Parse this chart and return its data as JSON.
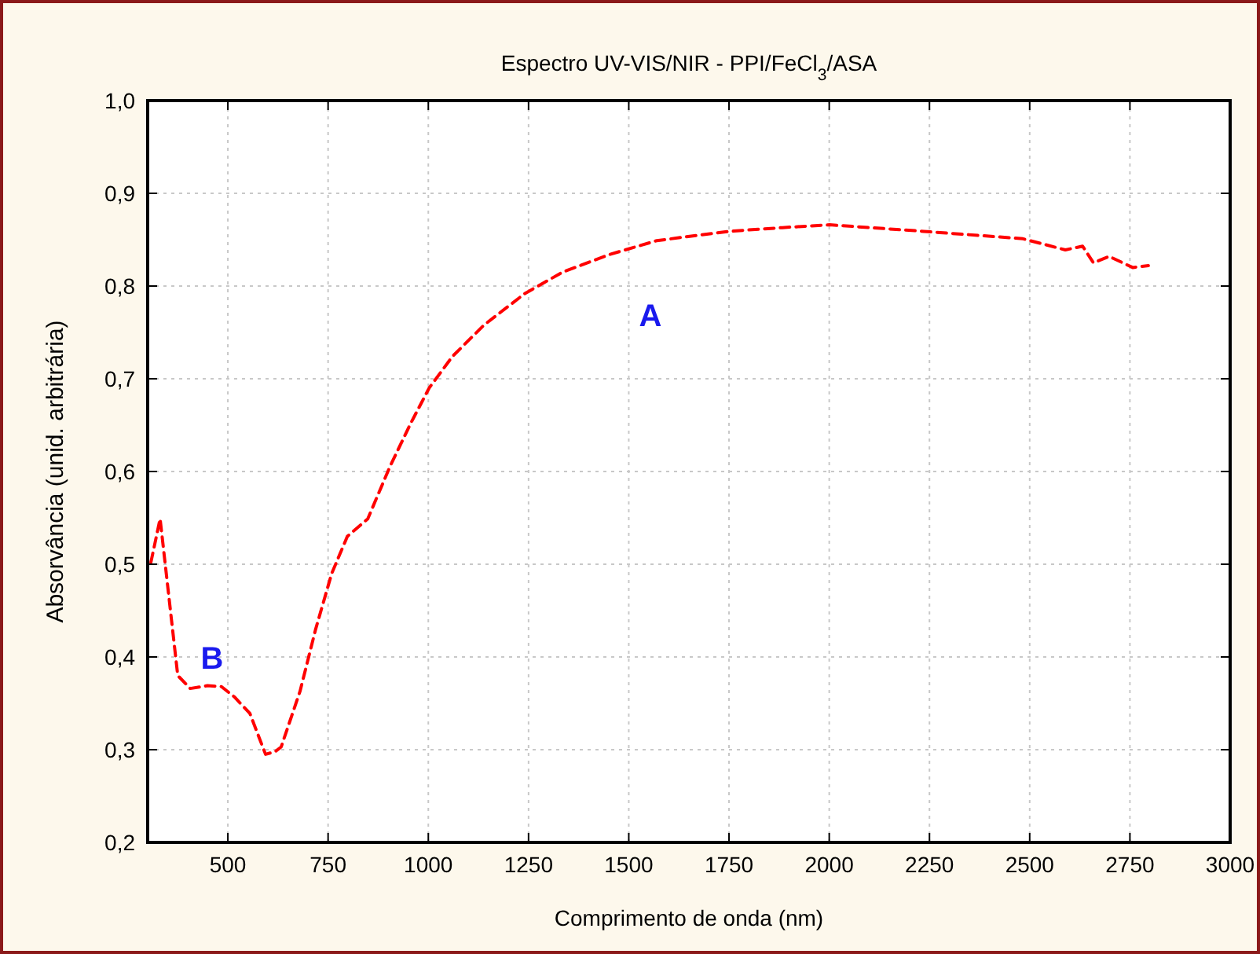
{
  "chart_data": {
    "type": "line",
    "title": "Espectro UV-VIS/NIR - PPI/FeCl$_{3}$/ASA",
    "xlabel": "Comprimento de onda (nm)",
    "ylabel": "Absorvância (unid. arbitrária)",
    "x": [
      308,
      331,
      375,
      406,
      449,
      484,
      516,
      555,
      594,
      618,
      633,
      680,
      719,
      759,
      798,
      849,
      904,
      955,
      1002,
      1060,
      1139,
      1241,
      1335,
      1452,
      1570,
      1750,
      1883,
      2001,
      2236,
      2483,
      2589,
      2632,
      2659,
      2698,
      2757,
      2796
    ],
    "series": [
      {
        "color": "#ff0000",
        "values": [
          0.502,
          0.549,
          0.38,
          0.366,
          0.369,
          0.368,
          0.357,
          0.339,
          0.295,
          0.298,
          0.303,
          0.363,
          0.43,
          0.49,
          0.53,
          0.549,
          0.605,
          0.651,
          0.69,
          0.724,
          0.758,
          0.792,
          0.815,
          0.834,
          0.849,
          0.859,
          0.863,
          0.866,
          0.859,
          0.851,
          0.839,
          0.843,
          0.825,
          0.832,
          0.82,
          0.822
        ]
      }
    ],
    "xlim": [
      300,
      3000
    ],
    "xticks": [
      500,
      750,
      1000,
      1250,
      1500,
      1750,
      2000,
      2250,
      2500,
      2750,
      3000
    ],
    "ylim": [
      0.2,
      1.0
    ],
    "yticks": [
      {
        "value": 0.2,
        "label": "0,2"
      },
      {
        "value": 0.3,
        "label": "0,3"
      },
      {
        "value": 0.4,
        "label": "0,4"
      },
      {
        "value": 0.5,
        "label": "0,5"
      },
      {
        "value": 0.6,
        "label": "0,6"
      },
      {
        "value": 0.7,
        "label": "0,7"
      },
      {
        "value": 0.8,
        "label": "0,8"
      },
      {
        "value": 0.9,
        "label": "0,9"
      },
      {
        "value": 1.0,
        "label": "1,0"
      }
    ],
    "grid": true,
    "line_style": "dashed",
    "marker": "none",
    "annotations": [
      "A",
      "B"
    ]
  }
}
